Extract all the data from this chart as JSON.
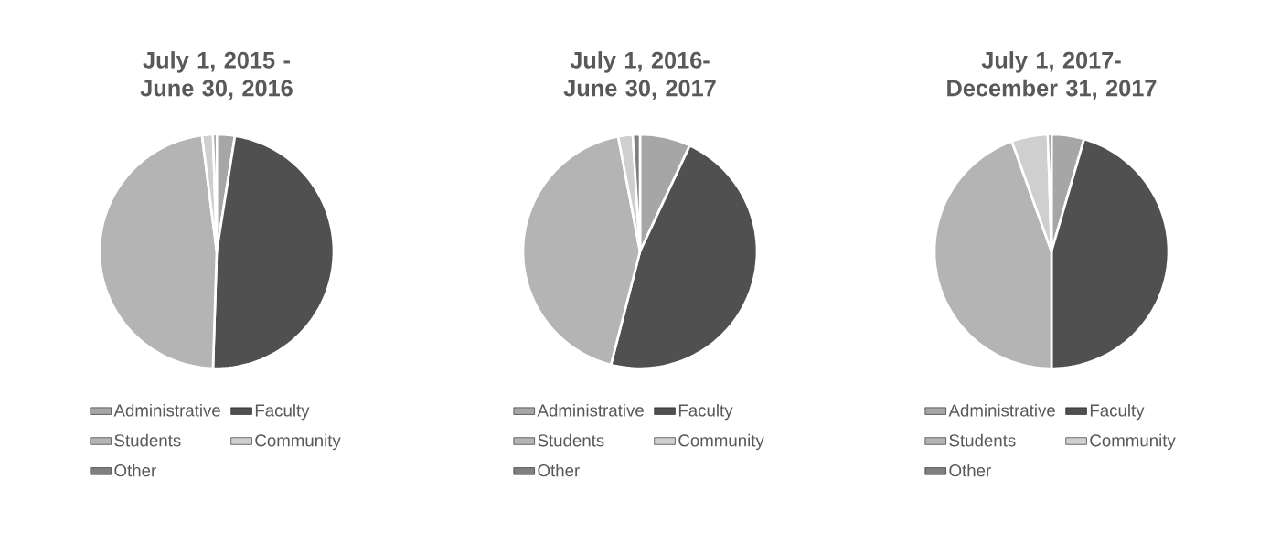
{
  "chart_data": [
    {
      "type": "pie",
      "title": "July 1, 2015 -June 30, 2016",
      "categories": [
        "Administrative",
        "Faculty",
        "Students",
        "Community",
        "Other"
      ],
      "values": [
        2.5,
        48,
        47.5,
        1.5,
        0.5
      ],
      "colors": [
        "#a6a6a6",
        "#505050",
        "#b4b4b4",
        "#cfcfcf",
        "#7f7f7f"
      ],
      "legend": "bottom"
    },
    {
      "type": "pie",
      "title": "July 1, 2016-June 30, 2017",
      "categories": [
        "Administrative",
        "Faculty",
        "Students",
        "Community",
        "Other"
      ],
      "values": [
        7,
        47,
        43,
        2,
        1
      ],
      "colors": [
        "#a6a6a6",
        "#505050",
        "#b4b4b4",
        "#cfcfcf",
        "#7f7f7f"
      ],
      "legend": "bottom"
    },
    {
      "type": "pie",
      "title": "July 1, 2017- December 31, 2017",
      "categories": [
        "Administrative",
        "Faculty",
        "Students",
        "Community",
        "Other"
      ],
      "values": [
        4.5,
        45.5,
        44.5,
        5,
        0.5
      ],
      "colors": [
        "#a6a6a6",
        "#505050",
        "#b4b4b4",
        "#cfcfcf",
        "#7f7f7f"
      ],
      "legend": "bottom"
    }
  ]
}
